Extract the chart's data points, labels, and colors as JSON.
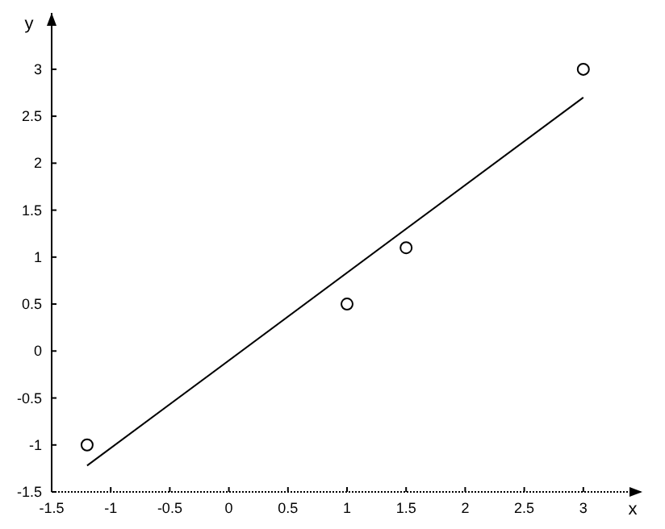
{
  "chart_data": {
    "type": "scatter",
    "xlabel": "x",
    "ylabel": "y",
    "xlim": [
      -1.5,
      3.5
    ],
    "ylim": [
      -1.5,
      3.6
    ],
    "xticks": [
      -1.5,
      -1,
      -0.5,
      0,
      0.5,
      1,
      1.5,
      2,
      2.5,
      3
    ],
    "yticks": [
      -1.5,
      -1,
      -0.5,
      0,
      0.5,
      1,
      1.5,
      2,
      2.5,
      3
    ],
    "grid": false,
    "series": [
      {
        "color": "#000000",
        "marker": "circle",
        "x": [
          -1.2,
          1,
          1.5,
          3
        ],
        "values": [
          -1,
          0.5,
          1.1,
          3
        ]
      },
      {
        "type": "line",
        "color": "#000000",
        "marker": "none",
        "line_style": "solid",
        "x": [
          -1.2,
          3
        ],
        "values": [
          -1.22,
          2.7
        ]
      }
    ]
  }
}
